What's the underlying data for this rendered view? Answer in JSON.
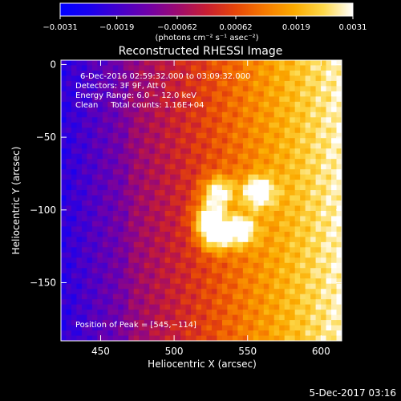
{
  "chart_data": {
    "type": "heatmap",
    "title": "Reconstructed RHESSI Image",
    "xlabel": "Heliocentric X (arcsec)",
    "ylabel": "Heliocentric Y (arcsec)",
    "xlim": [
      423,
      614
    ],
    "ylim": [
      -190,
      3
    ],
    "x_ticks": [
      450,
      500,
      550,
      600
    ],
    "x_tick_labels": [
      "450",
      "500",
      "550",
      "600"
    ],
    "y_ticks": [
      0,
      -50,
      -100,
      -150
    ],
    "y_tick_labels": [
      "0",
      "−50",
      "−100",
      "−150"
    ],
    "colorbar": {
      "range": [
        -0.0031,
        0.0031
      ],
      "ticks": [
        -0.0031,
        -0.0019,
        -0.00062,
        0.00062,
        0.0019,
        0.0031
      ],
      "tick_labels": [
        "−0.0031",
        "−0.0019",
        "−0.00062",
        "0.00062",
        "0.0019",
        "0.0031"
      ],
      "units": "(photons cm⁻² s⁻¹ asec⁻²)",
      "colormap": [
        "#0000ff",
        "#1a00ee",
        "#4400cc",
        "#7000a8",
        "#9c0a70",
        "#c81e32",
        "#e64608",
        "#f67a00",
        "#fbab00",
        "#fdd84a",
        "#ffffff"
      ]
    },
    "annotations": [
      "6-Dec-2016 02:59:32.000 to 03:09:32.000",
      "Detectors: 3F 9F, Att 0",
      "Energy Range: 6.0 − 12.0 keV",
      "Clean     Total counts: 1.16E+04",
      "Position of Peak = [545,−114]"
    ],
    "peak_sources": [
      {
        "x": 530,
        "y": -88
      },
      {
        "x": 557,
        "y": -88
      },
      {
        "x": 524,
        "y": -106
      },
      {
        "x": 545,
        "y": -114
      },
      {
        "x": 528,
        "y": -118
      }
    ],
    "footer": "5-Dec-2017 03:16"
  }
}
